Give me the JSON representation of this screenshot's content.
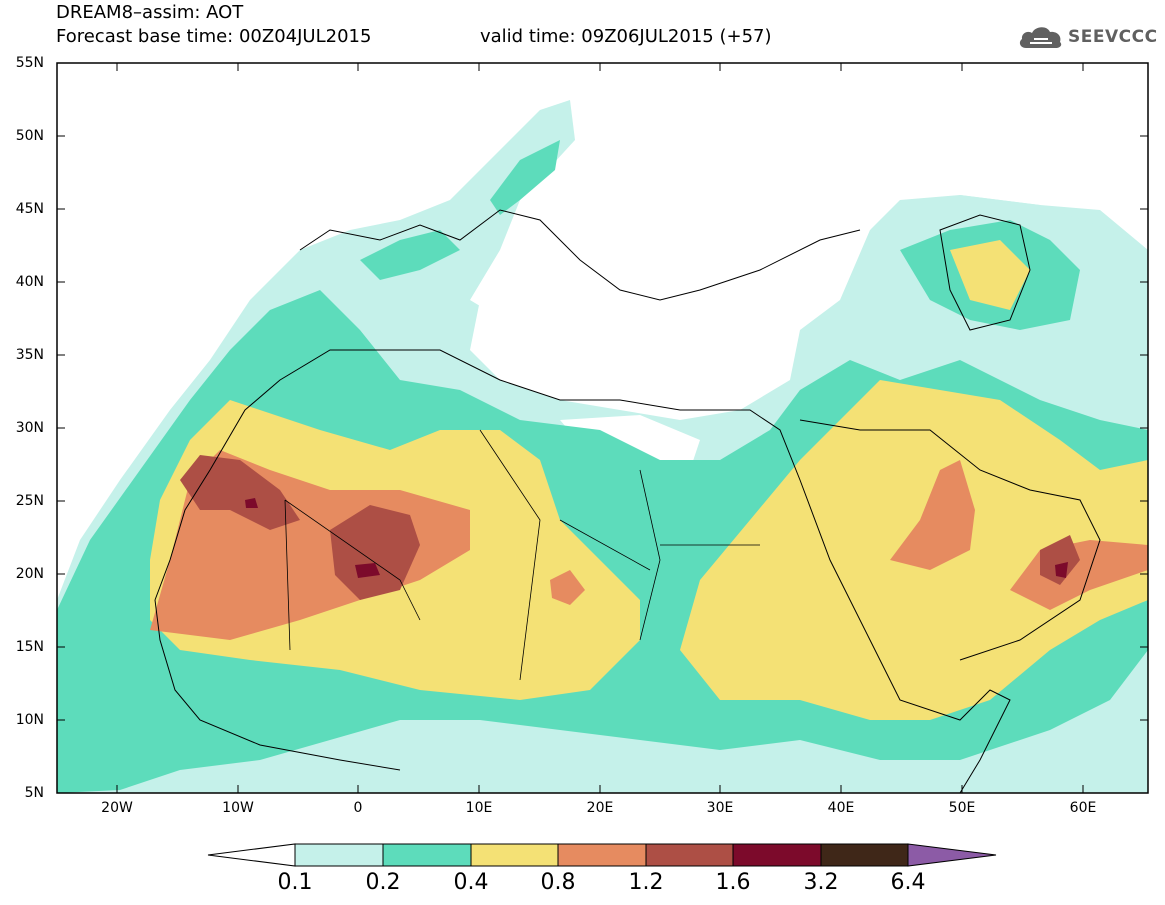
{
  "header": {
    "title": "DREAM8–assim: AOT",
    "base_time": "Forecast base time: 00Z04JUL2015",
    "valid_time": "valid time: 09Z06JUL2015 (+57)",
    "logo_text": "SEEVCCC"
  },
  "map": {
    "lat_labels": [
      "55N",
      "50N",
      "45N",
      "40N",
      "35N",
      "30N",
      "25N",
      "20N",
      "15N",
      "10N",
      "5N"
    ],
    "lon_labels": [
      "20W",
      "10W",
      "0",
      "10E",
      "20E",
      "30E",
      "40E",
      "50E",
      "60E"
    ]
  },
  "colorbar": {
    "labels": [
      "0.1",
      "0.2",
      "0.4",
      "0.8",
      "1.2",
      "1.6",
      "3.2",
      "6.4"
    ],
    "colors": [
      "#c5f1ea",
      "#5ddcbb",
      "#f4e175",
      "#e68b60",
      "#ad4f45",
      "#7c0a2b",
      "#3f2718",
      "#8c5ba6"
    ],
    "under_color": "#ffffff"
  }
}
